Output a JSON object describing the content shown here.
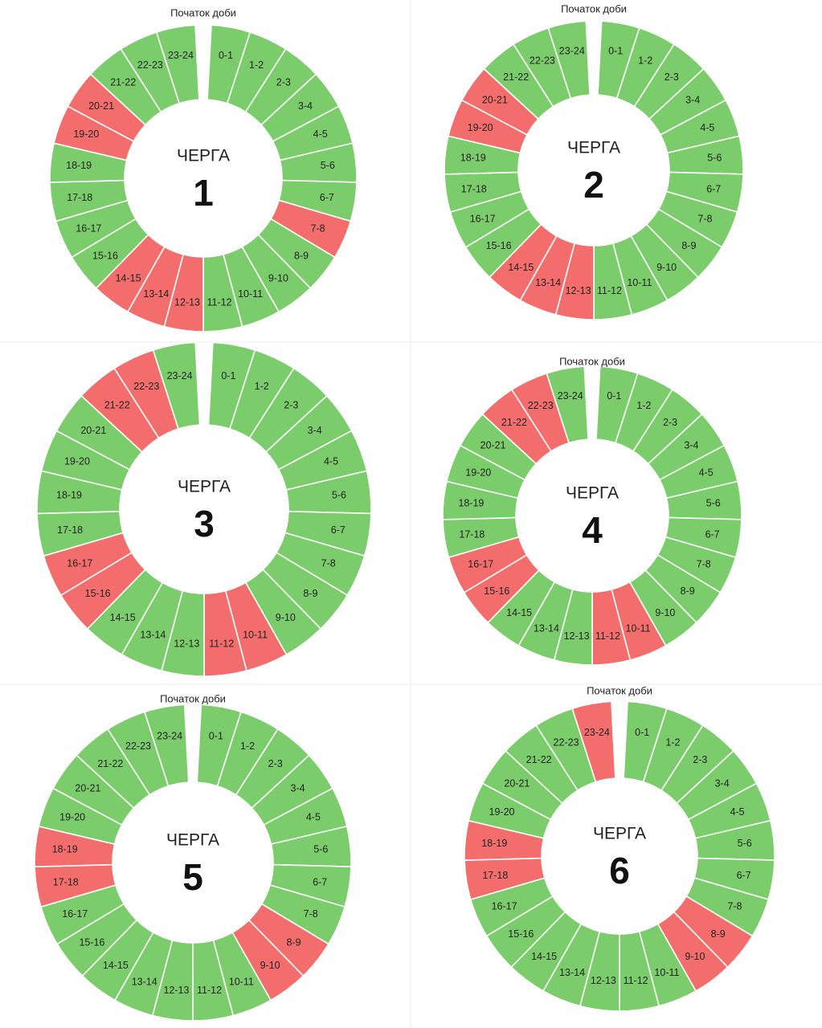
{
  "colors": {
    "power_on": "#7acd6a",
    "power_off": "#f46d6d",
    "separator": "#ffffff",
    "panel_divider": "#eeeeee"
  },
  "chart_data": [
    {
      "type": "pie",
      "title": "ЧЕРГА",
      "number": "1",
      "start_label": "Початок доби",
      "hours": [
        "0-1",
        "1-2",
        "2-3",
        "3-4",
        "4-5",
        "5-6",
        "6-7",
        "7-8",
        "8-9",
        "9-10",
        "10-11",
        "11-12",
        "12-13",
        "13-14",
        "14-15",
        "15-16",
        "16-17",
        "17-18",
        "18-19",
        "19-20",
        "20-21",
        "21-22",
        "22-23",
        "23-24"
      ],
      "off_hours": [
        "7-8",
        "12-13",
        "13-14",
        "14-15",
        "19-20",
        "20-21"
      ]
    },
    {
      "type": "pie",
      "title": "ЧЕРГА",
      "number": "2",
      "start_label": "Початок доби",
      "hours": [
        "0-1",
        "1-2",
        "2-3",
        "3-4",
        "4-5",
        "5-6",
        "6-7",
        "7-8",
        "8-9",
        "9-10",
        "10-11",
        "11-12",
        "12-13",
        "13-14",
        "14-15",
        "15-16",
        "16-17",
        "17-18",
        "18-19",
        "19-20",
        "20-21",
        "21-22",
        "22-23",
        "23-24"
      ],
      "off_hours": [
        "12-13",
        "13-14",
        "14-15",
        "19-20",
        "20-21"
      ]
    },
    {
      "type": "pie",
      "title": "ЧЕРГА",
      "number": "3",
      "start_label": "",
      "hours": [
        "0-1",
        "1-2",
        "2-3",
        "3-4",
        "4-5",
        "5-6",
        "6-7",
        "7-8",
        "8-9",
        "9-10",
        "10-11",
        "11-12",
        "12-13",
        "13-14",
        "14-15",
        "15-16",
        "16-17",
        "17-18",
        "18-19",
        "19-20",
        "20-21",
        "21-22",
        "22-23",
        "23-24"
      ],
      "off_hours": [
        "10-11",
        "11-12",
        "15-16",
        "16-17",
        "21-22",
        "22-23"
      ]
    },
    {
      "type": "pie",
      "title": "ЧЕРГА",
      "number": "4",
      "start_label": "Початок доби",
      "hours": [
        "0-1",
        "1-2",
        "2-3",
        "3-4",
        "4-5",
        "5-6",
        "6-7",
        "7-8",
        "8-9",
        "9-10",
        "10-11",
        "11-12",
        "12-13",
        "13-14",
        "14-15",
        "15-16",
        "16-17",
        "17-18",
        "18-19",
        "19-20",
        "20-21",
        "21-22",
        "22-23",
        "23-24"
      ],
      "off_hours": [
        "10-11",
        "11-12",
        "15-16",
        "16-17",
        "21-22",
        "22-23"
      ]
    },
    {
      "type": "pie",
      "title": "ЧЕРГА",
      "number": "5",
      "start_label": "Початок доби",
      "hours": [
        "0-1",
        "1-2",
        "2-3",
        "3-4",
        "4-5",
        "5-6",
        "6-7",
        "7-8",
        "8-9",
        "9-10",
        "10-11",
        "11-12",
        "12-13",
        "13-14",
        "14-15",
        "15-16",
        "16-17",
        "17-18",
        "18-19",
        "19-20",
        "20-21",
        "21-22",
        "22-23",
        "23-24"
      ],
      "off_hours": [
        "8-9",
        "9-10",
        "17-18",
        "18-19"
      ]
    },
    {
      "type": "pie",
      "title": "ЧЕРГА",
      "number": "6",
      "start_label": "Початок доби",
      "hours": [
        "0-1",
        "1-2",
        "2-3",
        "3-4",
        "4-5",
        "5-6",
        "6-7",
        "7-8",
        "8-9",
        "9-10",
        "10-11",
        "11-12",
        "12-13",
        "13-14",
        "14-15",
        "15-16",
        "16-17",
        "17-18",
        "18-19",
        "19-20",
        "20-21",
        "21-22",
        "22-23",
        "23-24"
      ],
      "off_hours": [
        "8-9",
        "9-10",
        "17-18",
        "18-19",
        "23-24"
      ]
    }
  ]
}
